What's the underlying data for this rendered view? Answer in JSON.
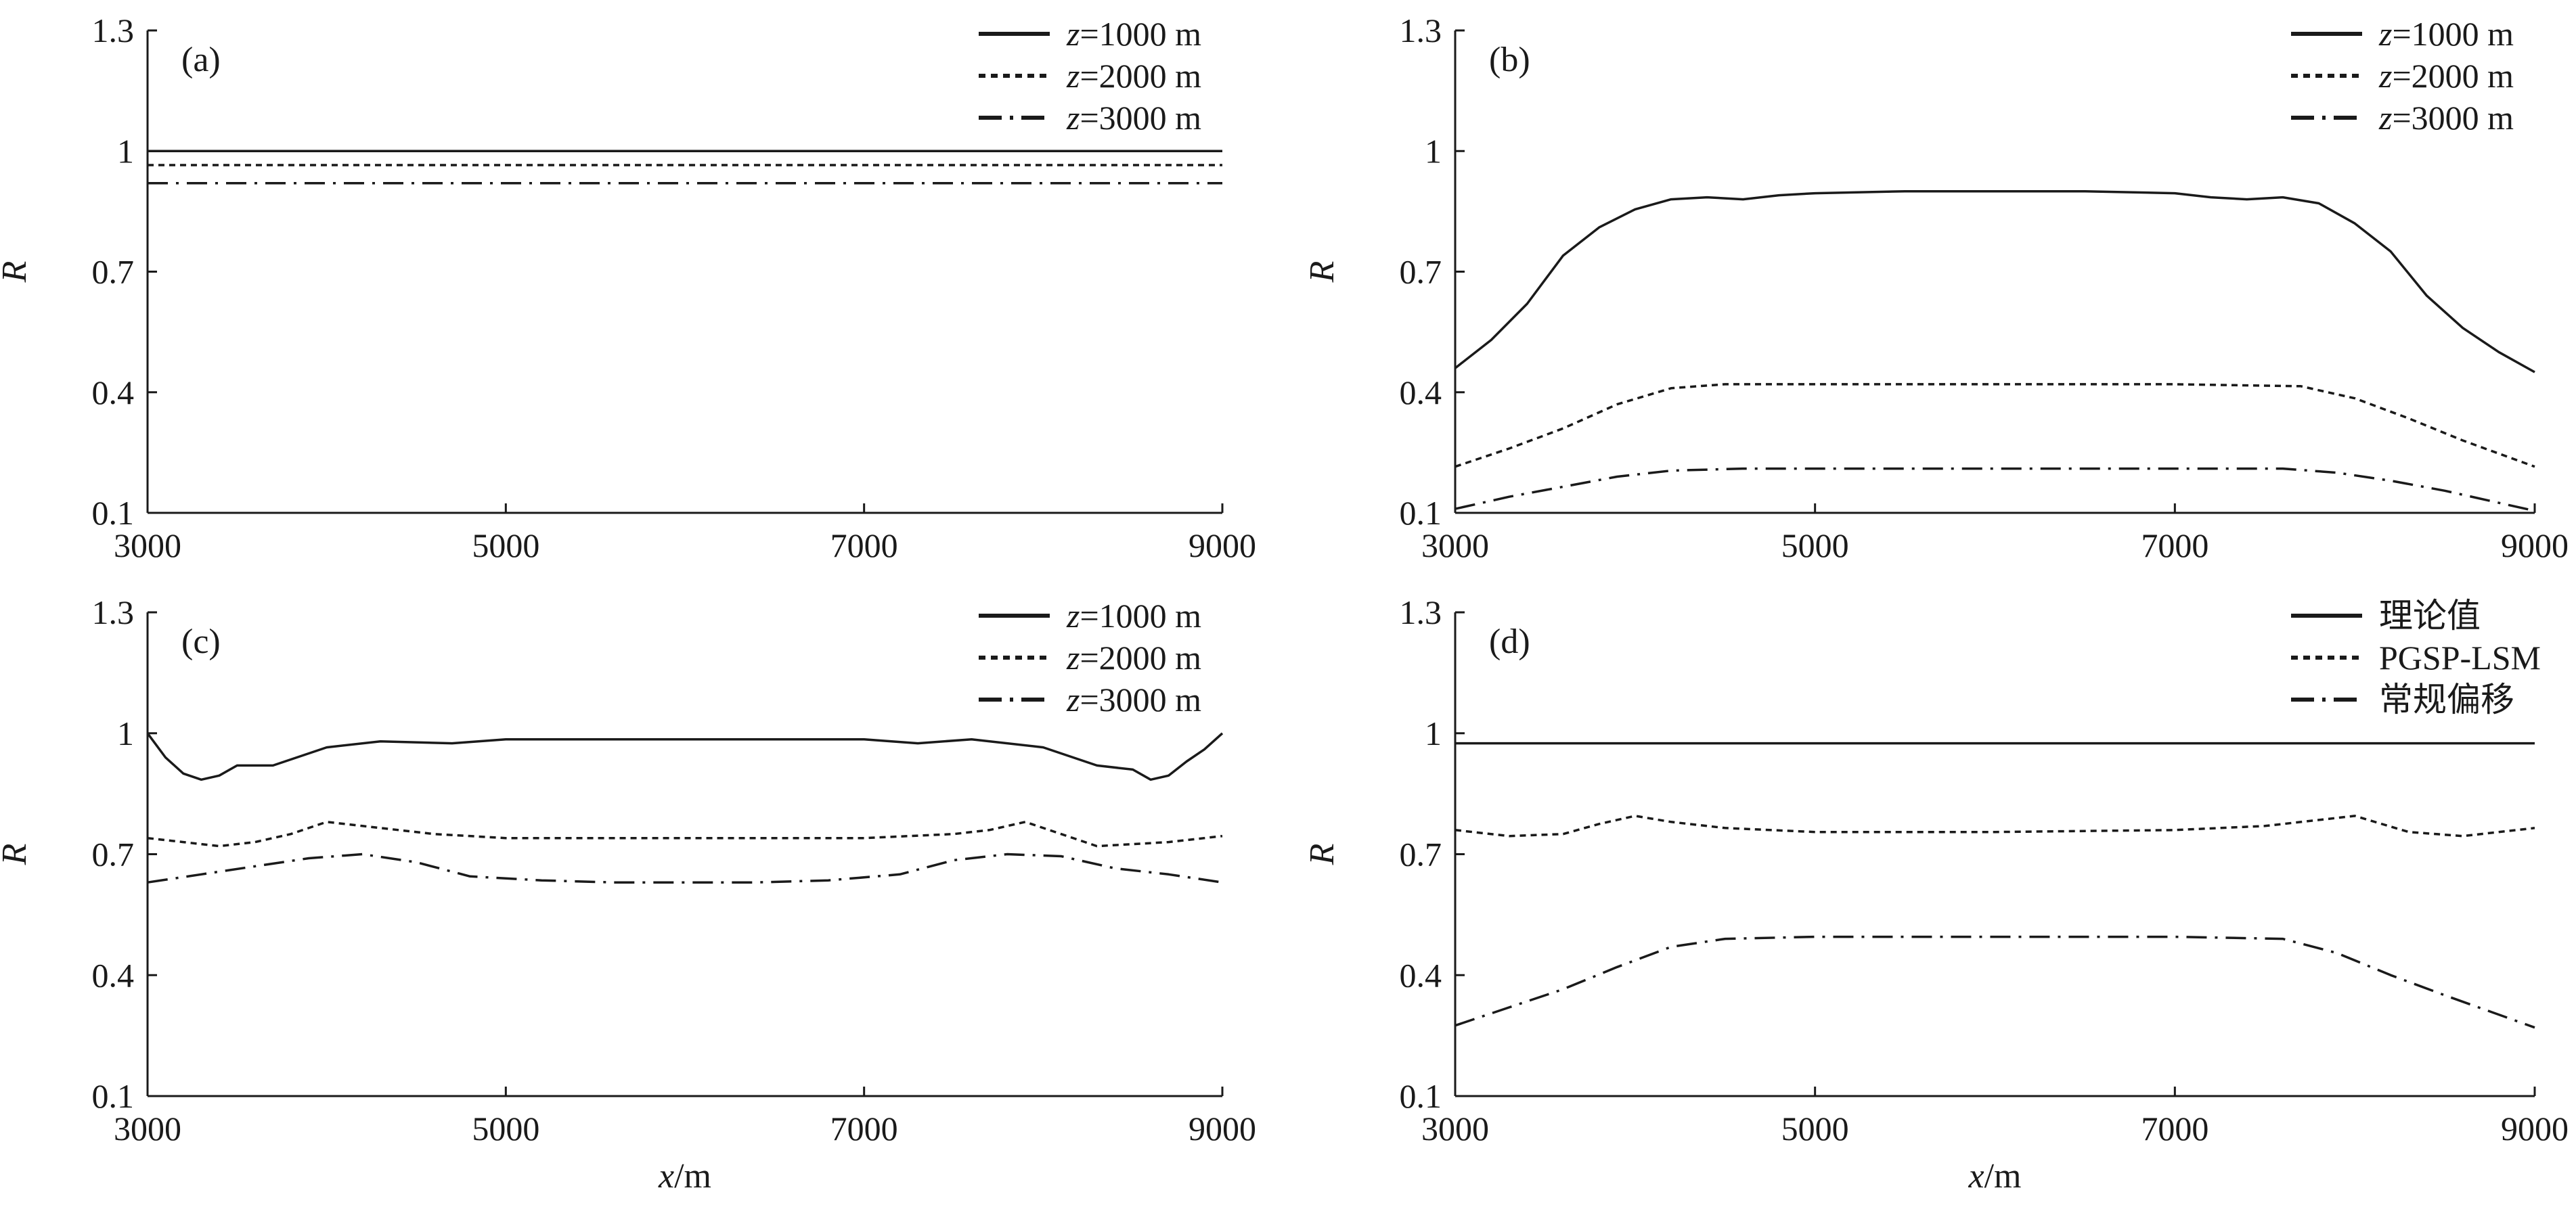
{
  "chart_data": [
    {
      "type": "line",
      "panel_label": "(a)",
      "ylabel": "R",
      "xlabel": "",
      "xlim": [
        3000,
        9000
      ],
      "ylim": [
        0.1,
        1.3
      ],
      "x_ticks": [
        "3000",
        "5000",
        "7000",
        "9000"
      ],
      "y_ticks": [
        "0.1",
        "0.4",
        "0.7",
        "1",
        "1.3"
      ],
      "legend_position": "top-right",
      "series": [
        {
          "name": "z=1000 m",
          "name_var": "z",
          "name_rest": "=1000 m",
          "dash": "solid",
          "x": [
            3000,
            9000
          ],
          "y": [
            1.0,
            1.0
          ]
        },
        {
          "name": "z=2000 m",
          "name_var": "z",
          "name_rest": "=2000 m",
          "dash": "dotted",
          "x": [
            3000,
            9000
          ],
          "y": [
            0.965,
            0.965
          ]
        },
        {
          "name": "z=3000 m",
          "name_var": "z",
          "name_rest": "=3000 m",
          "dash": "dashdot",
          "x": [
            3000,
            9000
          ],
          "y": [
            0.92,
            0.92
          ]
        }
      ]
    },
    {
      "type": "line",
      "panel_label": "(b)",
      "ylabel": "R",
      "xlabel": "",
      "xlim": [
        3000,
        9000
      ],
      "ylim": [
        0.1,
        1.3
      ],
      "x_ticks": [
        "3000",
        "5000",
        "7000",
        "9000"
      ],
      "y_ticks": [
        "0.1",
        "0.4",
        "0.7",
        "1",
        "1.3"
      ],
      "legend_position": "top-right",
      "series": [
        {
          "name": "z=1000 m",
          "name_var": "z",
          "name_rest": "=1000 m",
          "dash": "solid",
          "x": [
            3000,
            3200,
            3400,
            3600,
            3800,
            4000,
            4200,
            4400,
            4600,
            4800,
            5000,
            5500,
            6000,
            6500,
            7000,
            7200,
            7400,
            7600,
            7800,
            8000,
            8200,
            8400,
            8600,
            8800,
            9000
          ],
          "y": [
            0.46,
            0.53,
            0.62,
            0.74,
            0.81,
            0.855,
            0.88,
            0.885,
            0.88,
            0.89,
            0.895,
            0.9,
            0.9,
            0.9,
            0.895,
            0.885,
            0.88,
            0.885,
            0.87,
            0.82,
            0.75,
            0.64,
            0.56,
            0.5,
            0.45
          ]
        },
        {
          "name": "z=2000 m",
          "name_var": "z",
          "name_rest": "=2000 m",
          "dash": "dotted",
          "x": [
            3000,
            3300,
            3600,
            3900,
            4200,
            4500,
            5000,
            6000,
            7000,
            7700,
            8000,
            8300,
            8600,
            9000
          ],
          "y": [
            0.215,
            0.26,
            0.31,
            0.37,
            0.41,
            0.42,
            0.42,
            0.42,
            0.42,
            0.415,
            0.385,
            0.335,
            0.28,
            0.215
          ]
        },
        {
          "name": "z=3000 m",
          "name_var": "z",
          "name_rest": "=3000 m",
          "dash": "dashdot",
          "x": [
            3000,
            3300,
            3600,
            3900,
            4200,
            4600,
            5000,
            6000,
            7000,
            7600,
            7900,
            8200,
            8500,
            9000
          ],
          "y": [
            0.11,
            0.14,
            0.165,
            0.19,
            0.205,
            0.21,
            0.21,
            0.21,
            0.21,
            0.21,
            0.2,
            0.18,
            0.155,
            0.105
          ]
        }
      ]
    },
    {
      "type": "line",
      "panel_label": "(c)",
      "ylabel": "R",
      "xlabel": "x/m",
      "xlim": [
        3000,
        9000
      ],
      "ylim": [
        0.1,
        1.3
      ],
      "x_ticks": [
        "3000",
        "5000",
        "7000",
        "9000"
      ],
      "y_ticks": [
        "0.1",
        "0.4",
        "0.7",
        "1",
        "1.3"
      ],
      "legend_position": "top-right",
      "series": [
        {
          "name": "z=1000 m",
          "name_var": "z",
          "name_rest": "=1000 m",
          "dash": "solid",
          "x": [
            3000,
            3100,
            3200,
            3300,
            3400,
            3500,
            3700,
            4000,
            4300,
            4700,
            5000,
            5500,
            6000,
            6500,
            7000,
            7300,
            7600,
            8000,
            8300,
            8500,
            8600,
            8700,
            8800,
            8900,
            9000
          ],
          "y": [
            1.0,
            0.94,
            0.9,
            0.885,
            0.895,
            0.92,
            0.92,
            0.965,
            0.98,
            0.975,
            0.985,
            0.985,
            0.985,
            0.985,
            0.985,
            0.975,
            0.985,
            0.965,
            0.92,
            0.91,
            0.885,
            0.895,
            0.93,
            0.96,
            1.0
          ]
        },
        {
          "name": "z=2000 m",
          "name_var": "z",
          "name_rest": "=2000 m",
          "dash": "dotted",
          "x": [
            3000,
            3200,
            3400,
            3600,
            3800,
            4000,
            4200,
            4600,
            5000,
            6000,
            7000,
            7500,
            7700,
            7900,
            8100,
            8300,
            8500,
            8700,
            9000
          ],
          "y": [
            0.74,
            0.73,
            0.72,
            0.73,
            0.75,
            0.78,
            0.77,
            0.75,
            0.74,
            0.74,
            0.74,
            0.75,
            0.76,
            0.78,
            0.75,
            0.72,
            0.725,
            0.73,
            0.745
          ]
        },
        {
          "name": "z=3000 m",
          "name_var": "z",
          "name_rest": "=3000 m",
          "dash": "dashdot",
          "x": [
            3000,
            3300,
            3600,
            3900,
            4200,
            4500,
            4800,
            5200,
            5600,
            6000,
            6400,
            6800,
            7200,
            7500,
            7800,
            8100,
            8400,
            8700,
            9000
          ],
          "y": [
            0.63,
            0.65,
            0.67,
            0.69,
            0.7,
            0.68,
            0.645,
            0.635,
            0.63,
            0.63,
            0.63,
            0.635,
            0.65,
            0.685,
            0.7,
            0.695,
            0.665,
            0.65,
            0.63
          ]
        }
      ]
    },
    {
      "type": "line",
      "panel_label": "(d)",
      "ylabel": "R",
      "xlabel": "x/m",
      "xlim": [
        3000,
        9000
      ],
      "ylim": [
        0.1,
        1.3
      ],
      "x_ticks": [
        "3000",
        "5000",
        "7000",
        "9000"
      ],
      "y_ticks": [
        "0.1",
        "0.4",
        "0.7",
        "1",
        "1.3"
      ],
      "legend_position": "top-right",
      "series": [
        {
          "name": "理论值",
          "name_var": "",
          "name_rest": "理论值",
          "dash": "solid",
          "x": [
            3000,
            9000
          ],
          "y": [
            0.975,
            0.975
          ]
        },
        {
          "name": "PGSP-LSM",
          "name_var": "",
          "name_rest": "PGSP-LSM",
          "dash": "dotted",
          "x": [
            3000,
            3300,
            3600,
            3800,
            4000,
            4200,
            4500,
            5000,
            6000,
            7000,
            7500,
            7800,
            8000,
            8300,
            8600,
            9000
          ],
          "y": [
            0.76,
            0.745,
            0.75,
            0.775,
            0.795,
            0.78,
            0.765,
            0.755,
            0.755,
            0.76,
            0.77,
            0.785,
            0.795,
            0.755,
            0.745,
            0.765
          ]
        },
        {
          "name": "常规偏移",
          "name_var": "",
          "name_rest": "常规偏移",
          "dash": "dashdot",
          "x": [
            3000,
            3300,
            3600,
            3900,
            4200,
            4500,
            5000,
            6000,
            7000,
            7600,
            7900,
            8200,
            8500,
            9000
          ],
          "y": [
            0.275,
            0.32,
            0.365,
            0.42,
            0.47,
            0.49,
            0.495,
            0.495,
            0.495,
            0.49,
            0.455,
            0.4,
            0.35,
            0.27
          ]
        }
      ]
    }
  ]
}
